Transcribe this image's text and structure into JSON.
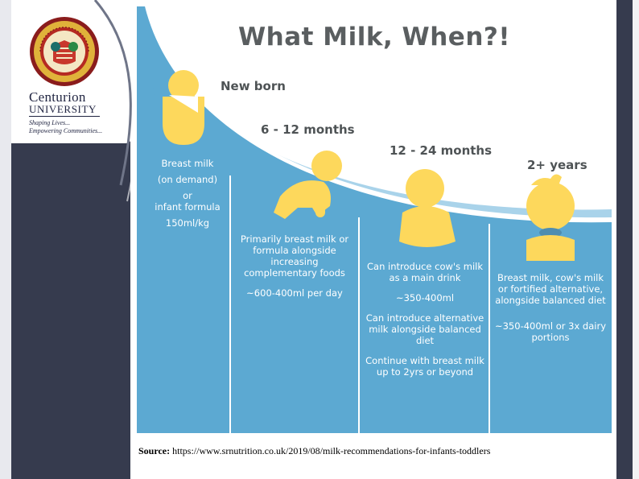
{
  "brand": {
    "name": "Centurion",
    "university": "UNIVERSITY",
    "tagline_1": "Shaping Lives...",
    "tagline_2": "Empowering Communities..."
  },
  "infographic": {
    "title": "What Milk, When?!",
    "stages": [
      {
        "label": "New born",
        "lines": [
          "Breast milk",
          "(on demand)",
          "or",
          "infant formula",
          "150ml/kg"
        ]
      },
      {
        "label": "6 - 12 months",
        "lines": [
          "Primarily breast milk or formula alongside increasing complementary foods",
          "~600-400ml per day"
        ]
      },
      {
        "label": "12 - 24 months",
        "lines": [
          "Can introduce cow's milk as a main drink",
          "~350-400ml",
          "Can introduce alternative milk alongside balanced diet",
          "Continue with breast milk up to 2yrs or beyond"
        ]
      },
      {
        "label": "2+ years",
        "lines": [
          "Breast milk, cow's milk or fortified alternative, alongside balanced diet",
          "~350-400ml or 3x dairy portions"
        ]
      }
    ]
  },
  "source": {
    "label": "Source:",
    "url": "https://www.srnutrition.co.uk/2019/08/milk-recommendations-for-infants-toddlers"
  },
  "colors": {
    "panel": "#363b4e",
    "blue": "#5ca9d2",
    "blue_light": "#a9d3ea",
    "baby_yellow": "#fdd85c",
    "title_gray": "#5a5e60"
  }
}
